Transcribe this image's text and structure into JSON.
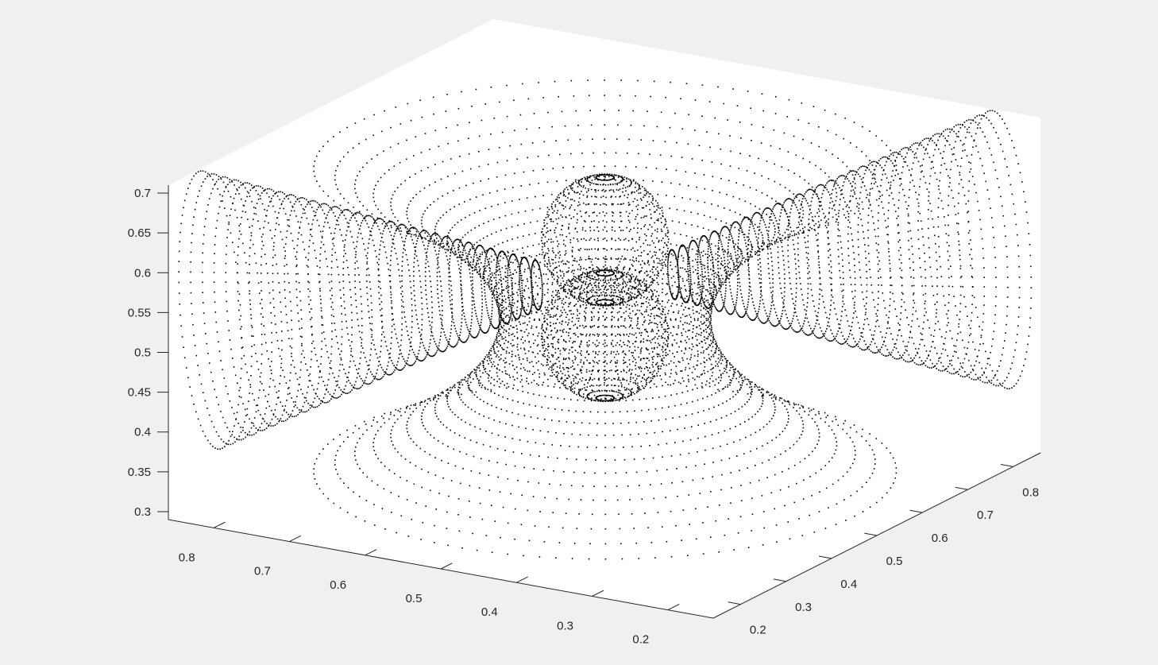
{
  "chart_data": {
    "type": "scatter",
    "projection": "3d",
    "marker_color": "#000000",
    "background_color": "#ffffff",
    "figure_color": "#f0f0f0",
    "grid": false,
    "legend": "none",
    "title": "",
    "xlabel": "",
    "ylabel": "",
    "zlabel": "",
    "x_ticks": [
      "0.8",
      "0.7",
      "0.6",
      "0.5",
      "0.4",
      "0.3",
      "0.2"
    ],
    "y_ticks": [
      "0.2",
      "0.3",
      "0.4",
      "0.5",
      "0.6",
      "0.7",
      "0.8"
    ],
    "z_ticks": [
      "0.7",
      "0.65",
      "0.6",
      "0.55",
      "0.5",
      "0.45",
      "0.4",
      "0.35",
      "0.3"
    ],
    "xlim": [
      0.14,
      0.86
    ],
    "ylim": [
      0.14,
      0.86
    ],
    "zlim": [
      0.29,
      0.71
    ],
    "center": [
      0.5,
      0.5,
      0.5
    ]
  }
}
